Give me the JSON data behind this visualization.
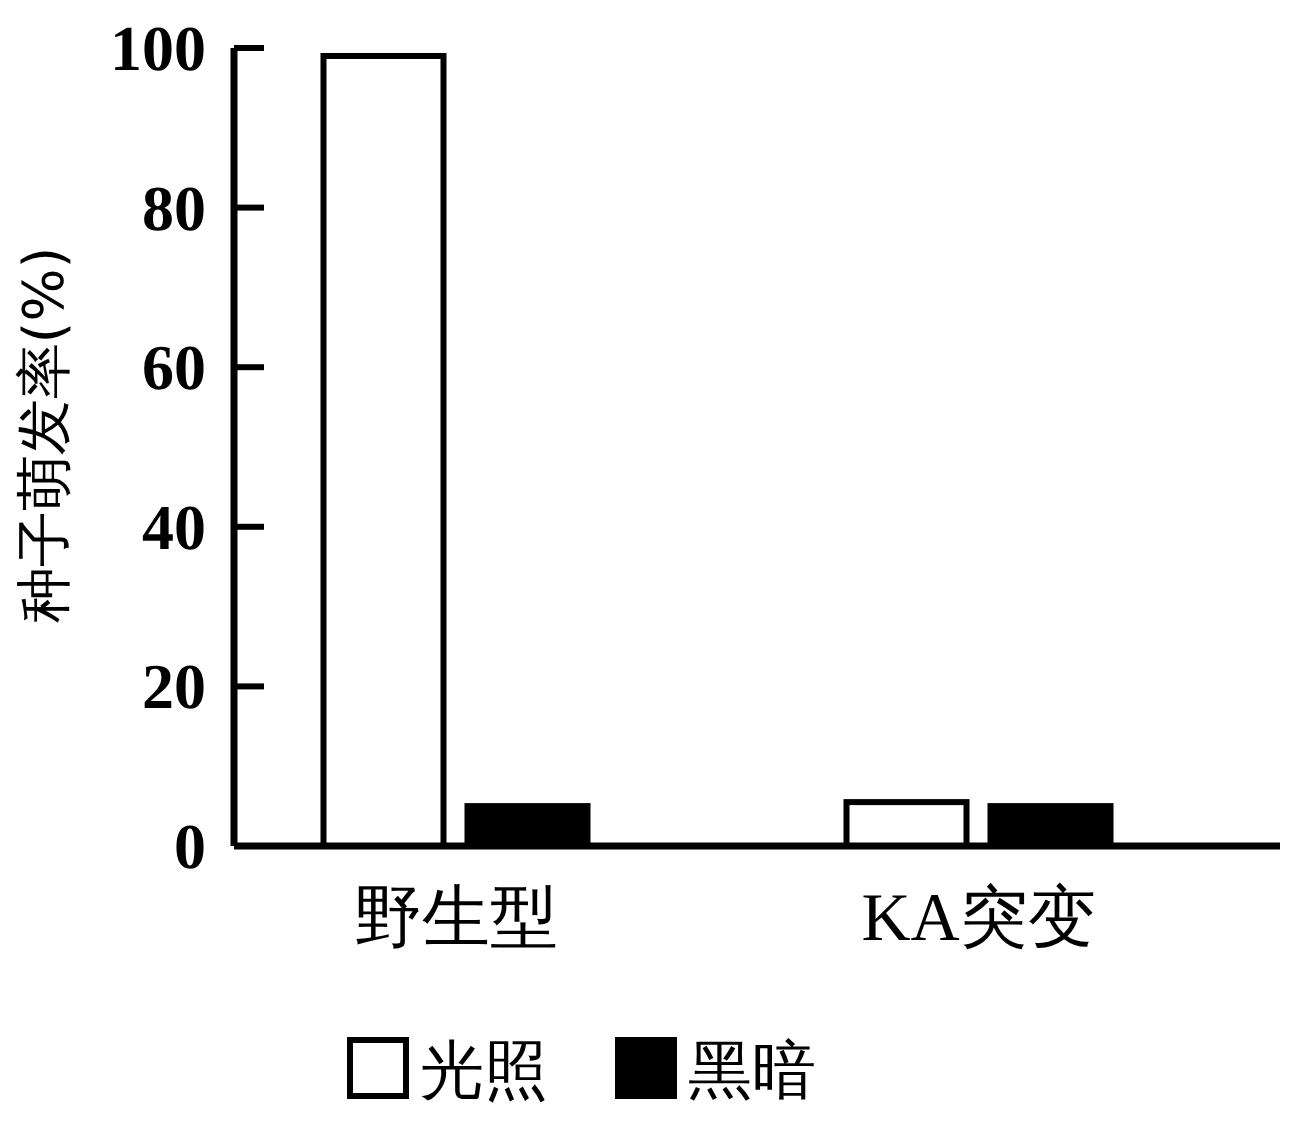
{
  "chart_data": {
    "type": "bar",
    "ylabel": "种子萌发率(%)",
    "categories": [
      "野生型",
      "KA突变"
    ],
    "series": [
      {
        "name": "光照",
        "color": "#ffffff",
        "values": [
          99,
          5.5
        ]
      },
      {
        "name": "黑暗",
        "color": "#000000",
        "values": [
          5,
          5
        ]
      }
    ],
    "ylim": [
      0,
      100
    ],
    "yticks": [
      0,
      20,
      40,
      60,
      80,
      100
    ],
    "legend": "bottom"
  }
}
